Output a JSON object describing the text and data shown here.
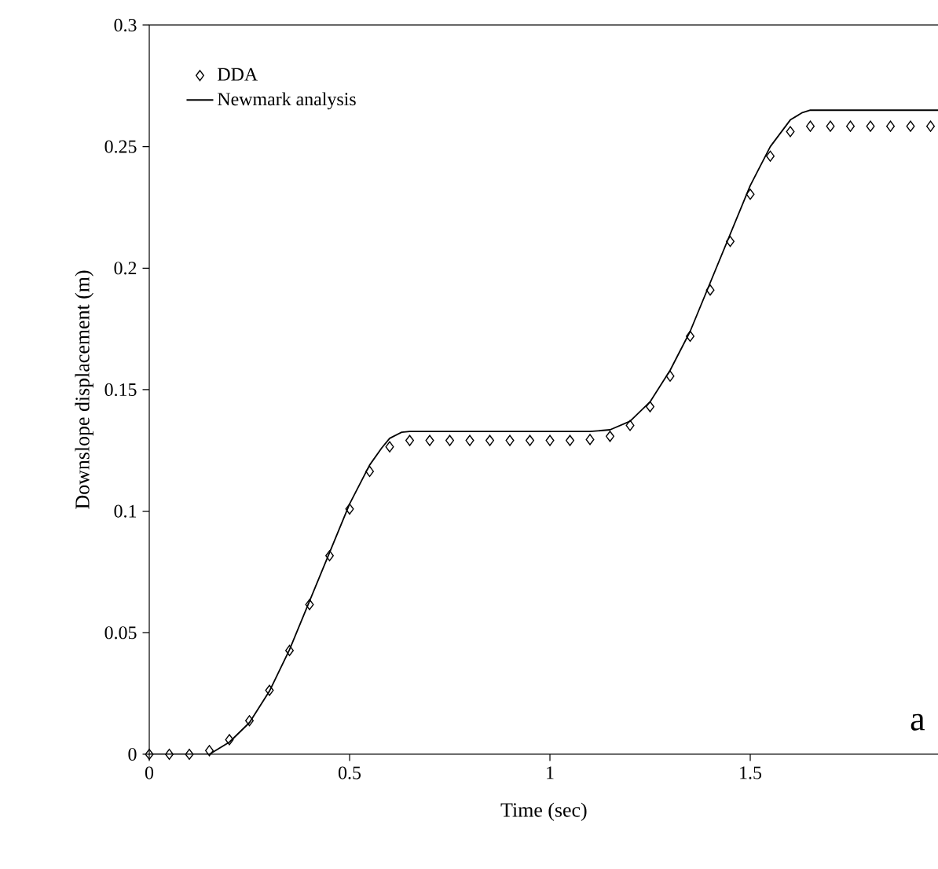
{
  "chart_data": {
    "type": "line",
    "xlabel": "Time (sec)",
    "ylabel": "Downslope displacement (m)",
    "xlim": [
      0,
      1.97
    ],
    "ylim": [
      0,
      0.3
    ],
    "xticks": [
      0,
      0.5,
      1,
      1.5
    ],
    "yticks": [
      0,
      0.05,
      0.1,
      0.15,
      0.2,
      0.25,
      0.3
    ],
    "grid": false,
    "legend": "top left",
    "annotations": [
      "a"
    ],
    "series": [
      {
        "name": "DDA",
        "type": "scatter",
        "marker": "diamond",
        "color": "#000000",
        "x": [
          0,
          0.05,
          0.1,
          0.15,
          0.2,
          0.25,
          0.3,
          0.35,
          0.4,
          0.45,
          0.5,
          0.55,
          0.6,
          0.65,
          0.7,
          0.75,
          0.8,
          0.85,
          0.9,
          0.95,
          1.0,
          1.05,
          1.1,
          1.15,
          1.2,
          1.25,
          1.3,
          1.35,
          1.4,
          1.45,
          1.5,
          1.55,
          1.6,
          1.65,
          1.7,
          1.75,
          1.8,
          1.85,
          1.9,
          1.95
        ],
        "values": [
          0,
          0,
          0,
          0.0015,
          0.006,
          0.0138,
          0.0263,
          0.0427,
          0.0616,
          0.0817,
          0.1009,
          0.1164,
          0.1265,
          0.1291,
          0.1291,
          0.1291,
          0.1291,
          0.1291,
          0.1291,
          0.1291,
          0.1291,
          0.1291,
          0.1295,
          0.1308,
          0.1353,
          0.143,
          0.1556,
          0.172,
          0.191,
          0.211,
          0.2304,
          0.2461,
          0.2562,
          0.2584,
          0.2584,
          0.2584,
          0.2584,
          0.2584,
          0.2584,
          0.2584
        ]
      },
      {
        "name": "Newmark analysis",
        "marker": "none",
        "color": "#000000",
        "x": [
          0,
          0.15,
          0.2,
          0.25,
          0.3,
          0.35,
          0.4,
          0.45,
          0.5,
          0.55,
          0.58,
          0.6,
          0.63,
          0.65,
          1.1,
          1.15,
          1.2,
          1.25,
          1.3,
          1.35,
          1.4,
          1.45,
          1.5,
          1.55,
          1.6,
          1.63,
          1.65,
          1.97
        ],
        "values": [
          0,
          0,
          0.005,
          0.013,
          0.026,
          0.043,
          0.063,
          0.083,
          0.103,
          0.119,
          0.126,
          0.13,
          0.1325,
          0.1328,
          0.1328,
          0.1335,
          0.137,
          0.145,
          0.158,
          0.174,
          0.194,
          0.214,
          0.234,
          0.25,
          0.261,
          0.264,
          0.265,
          0.265
        ]
      }
    ]
  }
}
